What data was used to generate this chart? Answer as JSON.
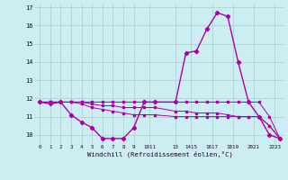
{
  "ylim": [
    9.5,
    17.2
  ],
  "yticks": [
    10,
    11,
    12,
    13,
    14,
    15,
    16,
    17
  ],
  "xlabel": "Windchill (Refroidissement éolien,°C)",
  "background_color": "#cceef2",
  "line_color": "#aa00aa",
  "grid_color": "#aacccc",
  "line1_x": [
    0,
    1,
    2,
    3,
    4,
    5,
    6,
    7,
    8,
    9,
    10,
    11,
    13,
    14,
    15,
    16,
    17,
    18,
    19,
    20,
    21,
    22,
    23
  ],
  "line1_y": [
    11.8,
    11.7,
    11.8,
    11.1,
    10.7,
    10.4,
    9.8,
    9.8,
    9.8,
    10.4,
    11.8,
    11.8,
    11.8,
    14.5,
    14.6,
    15.8,
    16.7,
    16.5,
    14.0,
    11.8,
    11.0,
    10.0,
    9.8
  ],
  "line2_x": [
    0,
    1,
    2,
    3,
    4,
    5,
    6,
    7,
    8,
    9,
    10,
    11,
    13,
    14,
    15,
    16,
    17,
    18,
    19,
    20,
    21,
    22,
    23
  ],
  "line2_y": [
    11.8,
    11.8,
    11.8,
    11.8,
    11.7,
    11.5,
    11.4,
    11.3,
    11.2,
    11.1,
    11.1,
    11.1,
    11.0,
    11.0,
    11.0,
    11.0,
    11.0,
    11.0,
    11.0,
    11.0,
    11.0,
    10.5,
    9.8
  ],
  "line3_x": [
    0,
    1,
    2,
    3,
    4,
    5,
    6,
    7,
    8,
    9,
    10,
    11,
    13,
    14,
    15,
    16,
    17,
    18,
    19,
    20,
    21,
    22,
    23
  ],
  "line3_y": [
    11.8,
    11.8,
    11.8,
    11.8,
    11.8,
    11.8,
    11.8,
    11.8,
    11.8,
    11.8,
    11.8,
    11.8,
    11.8,
    11.8,
    11.8,
    11.8,
    11.8,
    11.8,
    11.8,
    11.8,
    11.8,
    11.0,
    9.8
  ],
  "line4_x": [
    0,
    1,
    2,
    3,
    4,
    5,
    6,
    7,
    8,
    9,
    10,
    11,
    13,
    14,
    15,
    16,
    17,
    18,
    19,
    20,
    21,
    22,
    23
  ],
  "line4_y": [
    11.8,
    11.8,
    11.8,
    11.8,
    11.8,
    11.7,
    11.6,
    11.6,
    11.5,
    11.5,
    11.5,
    11.5,
    11.3,
    11.3,
    11.2,
    11.2,
    11.2,
    11.1,
    11.0,
    11.0,
    11.0,
    10.5,
    9.8
  ],
  "x_tick_positions": [
    0,
    1,
    2,
    3,
    4,
    5,
    6,
    7,
    8,
    9,
    10.5,
    13,
    14.5,
    16.5,
    18.5,
    20.5,
    22.5
  ],
  "x_tick_labels": [
    "0",
    "1",
    "2",
    "3",
    "4",
    "5",
    "6",
    "7",
    "8",
    "9",
    "1011",
    "13",
    "1415",
    "1617",
    "1819",
    "2021",
    "2223"
  ]
}
